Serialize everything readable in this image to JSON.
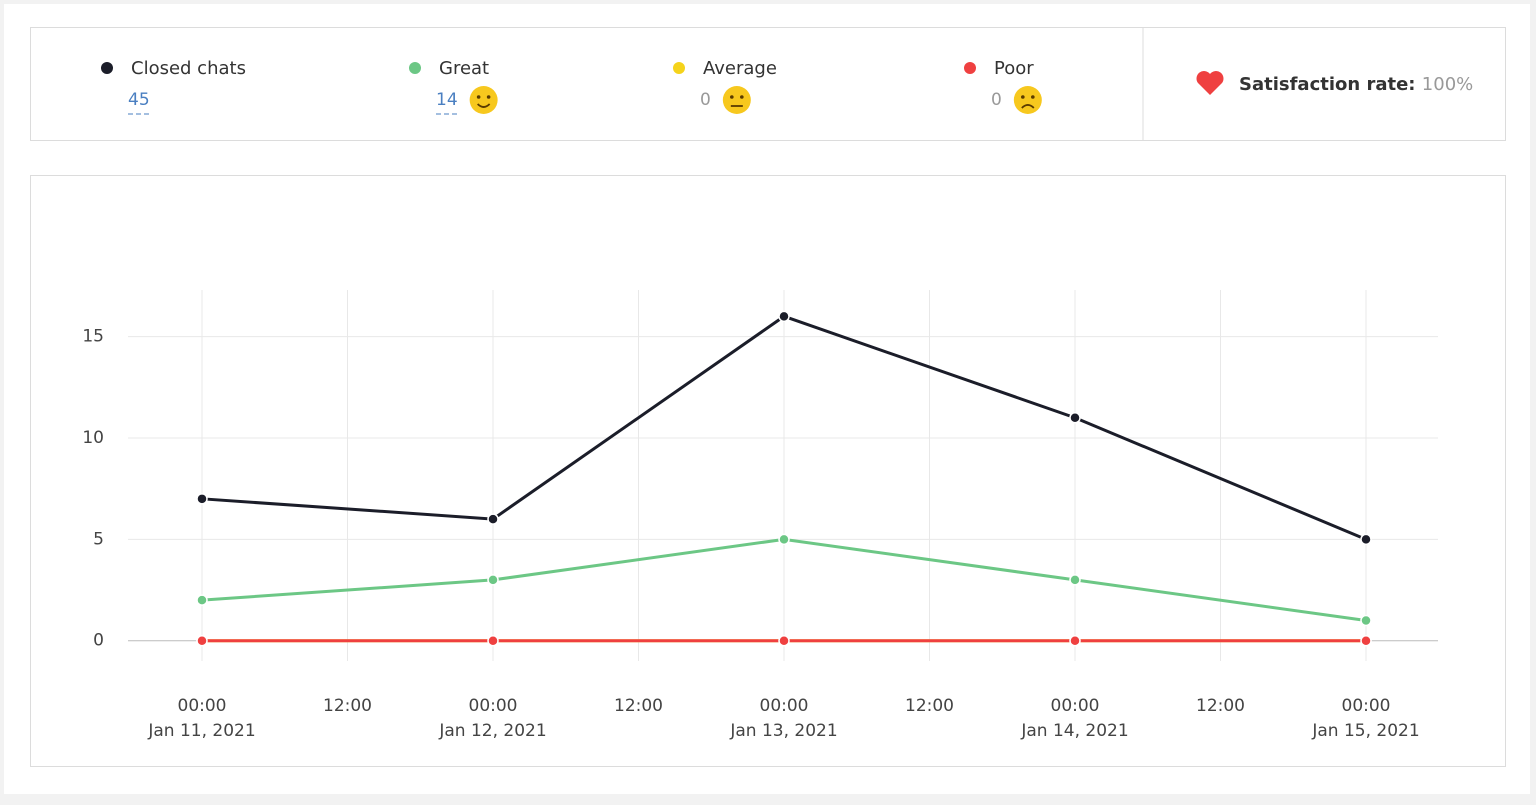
{
  "chart_data": {
    "type": "line",
    "categories": [
      "Jan 11, 2021",
      "Jan 12, 2021",
      "Jan 13, 2021",
      "Jan 14, 2021",
      "Jan 15, 2021"
    ],
    "xticks": [
      "00:00",
      "12:00",
      "00:00",
      "12:00",
      "00:00",
      "12:00",
      "00:00",
      "12:00",
      "00:00"
    ],
    "series": [
      {
        "name": "Closed chats",
        "color": "#1b1d29",
        "total": 45,
        "values": [
          7,
          6,
          16,
          11,
          5
        ]
      },
      {
        "name": "Great",
        "color": "#6cc785",
        "total": 14,
        "values": [
          2,
          3,
          5,
          3,
          1
        ]
      },
      {
        "name": "Average",
        "color": "#f5d31b",
        "total": 0,
        "values": [
          0,
          0,
          0,
          0,
          0
        ]
      },
      {
        "name": "Poor",
        "color": "#ef4040",
        "total": 0,
        "values": [
          0,
          0,
          0,
          0,
          0
        ]
      }
    ],
    "ylim": [
      -1,
      17.3
    ],
    "yticks": [
      0,
      5,
      10,
      15
    ],
    "grid": true,
    "satisfaction_label": "Satisfaction rate:",
    "satisfaction_value": "100%"
  }
}
